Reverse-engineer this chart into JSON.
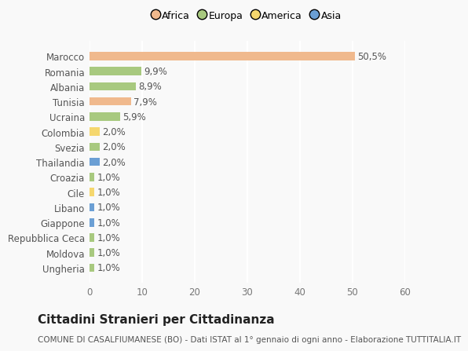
{
  "categories": [
    "Marocco",
    "Romania",
    "Albania",
    "Tunisia",
    "Ucraina",
    "Colombia",
    "Svezia",
    "Thailandia",
    "Croazia",
    "Cile",
    "Libano",
    "Giappone",
    "Repubblica Ceca",
    "Moldova",
    "Ungheria"
  ],
  "values": [
    50.5,
    9.9,
    8.9,
    7.9,
    5.9,
    2.0,
    2.0,
    2.0,
    1.0,
    1.0,
    1.0,
    1.0,
    1.0,
    1.0,
    1.0
  ],
  "labels": [
    "50,5%",
    "9,9%",
    "8,9%",
    "7,9%",
    "5,9%",
    "2,0%",
    "2,0%",
    "2,0%",
    "1,0%",
    "1,0%",
    "1,0%",
    "1,0%",
    "1,0%",
    "1,0%",
    "1,0%"
  ],
  "continents": [
    "Africa",
    "Europa",
    "Europa",
    "Africa",
    "Europa",
    "America",
    "Europa",
    "Asia",
    "Europa",
    "America",
    "Asia",
    "Asia",
    "Europa",
    "Europa",
    "Europa"
  ],
  "continent_colors": {
    "Africa": "#F0B98D",
    "Europa": "#A8C97F",
    "America": "#F5D76E",
    "Asia": "#6B9FD4"
  },
  "legend_items": [
    "Africa",
    "Europa",
    "America",
    "Asia"
  ],
  "legend_colors": [
    "#F0B98D",
    "#A8C97F",
    "#F5D76E",
    "#6B9FD4"
  ],
  "xlim": [
    0,
    60
  ],
  "xticks": [
    0,
    10,
    20,
    30,
    40,
    50,
    60
  ],
  "title": "Cittadini Stranieri per Cittadinanza",
  "subtitle": "COMUNE DI CASALFIUMANESE (BO) - Dati ISTAT al 1° gennaio di ogni anno - Elaborazione TUTTITALIA.IT",
  "background_color": "#f9f9f9",
  "bar_height": 0.55,
  "title_fontsize": 11,
  "subtitle_fontsize": 7.5,
  "label_fontsize": 8.5,
  "tick_fontsize": 8.5,
  "legend_fontsize": 9
}
